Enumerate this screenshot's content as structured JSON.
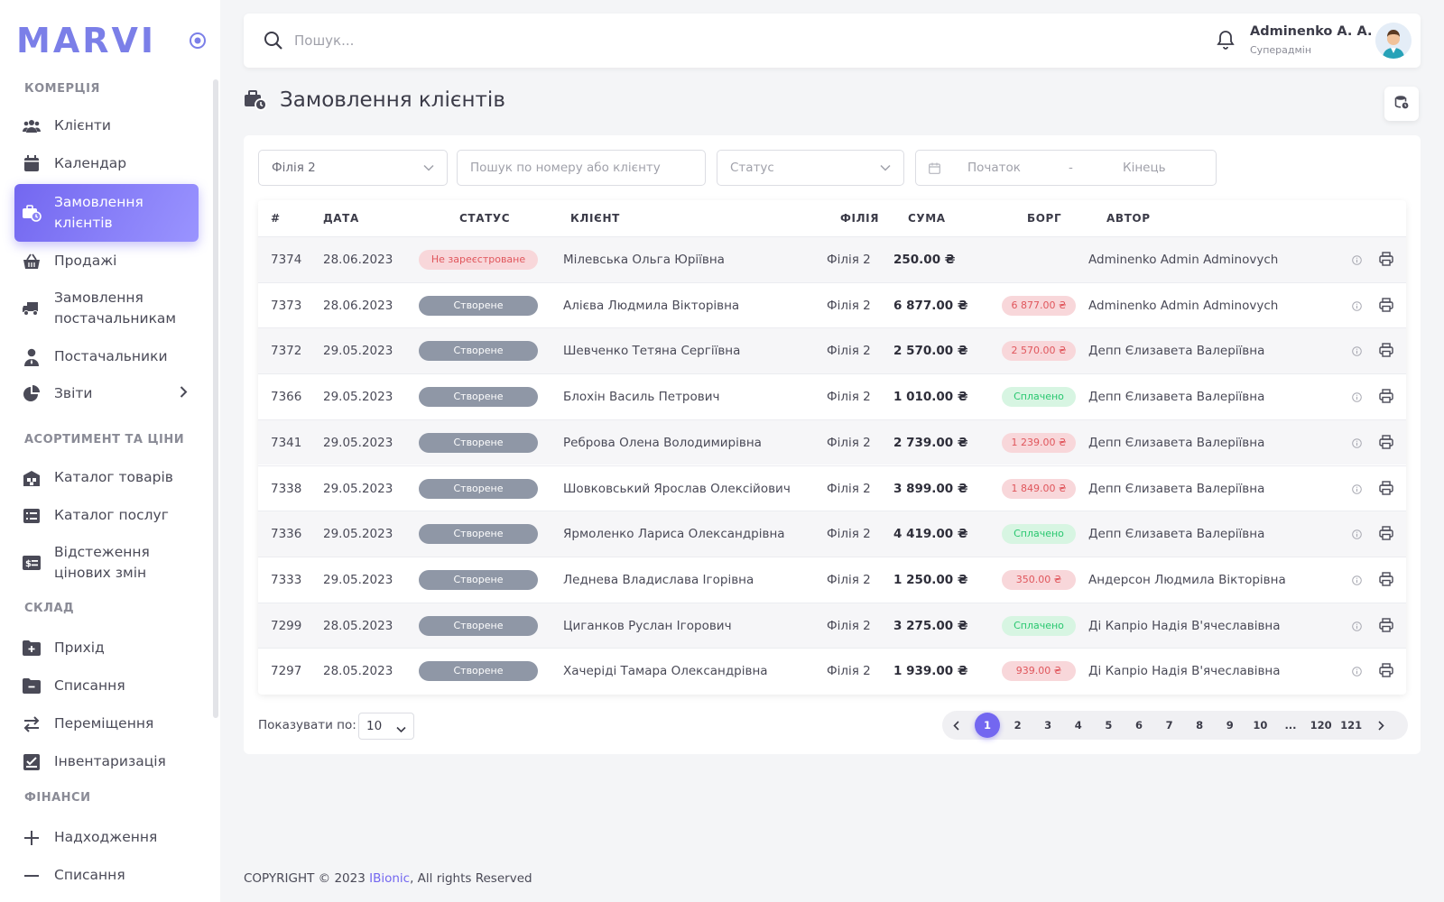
{
  "app": {
    "logo": "MARVI"
  },
  "sidebar": {
    "sections": [
      {
        "title": "КОМЕРЦІЯ"
      },
      {
        "title": "АСОРТИМЕНТ ТА ЦІНИ"
      },
      {
        "title": "СКЛАД"
      },
      {
        "title": "ФІНАНСИ"
      }
    ],
    "items": [
      {
        "label": "Клієнти",
        "icon": "users-icon"
      },
      {
        "label": "Календар",
        "icon": "calendar-icon"
      },
      {
        "label": "Замовлення клієнтів",
        "icon": "briefcase-clock-icon",
        "active": true
      },
      {
        "label": "Продажі",
        "icon": "basket-icon"
      },
      {
        "label": "Замовлення постачальникам",
        "icon": "truck-icon"
      },
      {
        "label": "Постачальники",
        "icon": "user-tie-icon"
      },
      {
        "label": "Звіти",
        "icon": "pie-chart-icon"
      },
      {
        "label": "Каталог товарів",
        "icon": "warehouse-icon"
      },
      {
        "label": "Каталог послуг",
        "icon": "list-icon"
      },
      {
        "label": "Відстеження цінових змін",
        "icon": "price-tag-icon"
      },
      {
        "label": "Прихід",
        "icon": "folder-plus-icon"
      },
      {
        "label": "Списання",
        "icon": "folder-minus-icon"
      },
      {
        "label": "Переміщення",
        "icon": "arrows-swap-icon"
      },
      {
        "label": "Інвентаризація",
        "icon": "checklist-icon"
      },
      {
        "label": "Надходження",
        "icon": "plus-icon"
      },
      {
        "label": "Списання",
        "icon": "minus-icon"
      }
    ]
  },
  "header": {
    "search_placeholder": "Пошук...",
    "user_name": "Adminenko A. A.",
    "user_role": "Суперадмін"
  },
  "page": {
    "title": "Замовлення клієнтів"
  },
  "filters": {
    "branch": "Філія 2",
    "search_placeholder": "Пошук по номеру або клієнту",
    "status_placeholder": "Статус",
    "date_start": "Початок",
    "date_sep": "-",
    "date_end": "Кінець"
  },
  "table": {
    "columns": [
      "#",
      "ДАТА",
      "СТАТУС",
      "КЛІЄНТ",
      "ФІЛІЯ",
      "СУМА",
      "БОРГ",
      "АВТОР"
    ],
    "rows": [
      {
        "id": "7374",
        "date": "28.06.2023",
        "status": "Не зареєстроване",
        "status_type": "unreg",
        "client": "Мілевська Ольга Юріївна",
        "branch": "Філія 2",
        "sum": "250.00 ₴",
        "debt": "",
        "debt_type": "",
        "author": "Adminenko Admin Adminovych"
      },
      {
        "id": "7373",
        "date": "28.06.2023",
        "status": "Створене",
        "status_type": "created",
        "client": "Алієва Людмила Вікторівна",
        "branch": "Філія 2",
        "sum": "6 877.00 ₴",
        "debt": "6 877.00 ₴",
        "debt_type": "red",
        "author": "Adminenko Admin Adminovych"
      },
      {
        "id": "7372",
        "date": "29.05.2023",
        "status": "Створене",
        "status_type": "created",
        "client": "Шевченко Тетяна Сергіївна",
        "branch": "Філія 2",
        "sum": "2 570.00 ₴",
        "debt": "2 570.00 ₴",
        "debt_type": "red",
        "author": "Депп Єлизавета Валеріївна"
      },
      {
        "id": "7366",
        "date": "29.05.2023",
        "status": "Створене",
        "status_type": "created",
        "client": "Блохін Василь Петрович",
        "branch": "Філія 2",
        "sum": "1 010.00 ₴",
        "debt": "Сплачено",
        "debt_type": "green",
        "author": "Депп Єлизавета Валеріївна"
      },
      {
        "id": "7341",
        "date": "29.05.2023",
        "status": "Створене",
        "status_type": "created",
        "client": "Реброва Олена Володимирівна",
        "branch": "Філія 2",
        "sum": "2 739.00 ₴",
        "debt": "1 239.00 ₴",
        "debt_type": "red",
        "author": "Депп Єлизавета Валеріївна"
      },
      {
        "id": "7338",
        "date": "29.05.2023",
        "status": "Створене",
        "status_type": "created",
        "client": "Шовковський Ярослав Олексійович",
        "branch": "Філія 2",
        "sum": "3 899.00 ₴",
        "debt": "1 849.00 ₴",
        "debt_type": "red",
        "author": "Депп Єлизавета Валеріївна"
      },
      {
        "id": "7336",
        "date": "29.05.2023",
        "status": "Створене",
        "status_type": "created",
        "client": "Ярмоленко Лариса Олександрівна",
        "branch": "Філія 2",
        "sum": "4 419.00 ₴",
        "debt": "Сплачено",
        "debt_type": "green",
        "author": "Депп Єлизавета Валеріївна"
      },
      {
        "id": "7333",
        "date": "29.05.2023",
        "status": "Створене",
        "status_type": "created",
        "client": "Леднева Владислава Ігорівна",
        "branch": "Філія 2",
        "sum": "1 250.00 ₴",
        "debt": "350.00 ₴",
        "debt_type": "red",
        "author": "Андерсон Людмила Вікторівна"
      },
      {
        "id": "7299",
        "date": "28.05.2023",
        "status": "Створене",
        "status_type": "created",
        "client": "Циганков Руслан Ігорович",
        "branch": "Філія 2",
        "sum": "3 275.00 ₴",
        "debt": "Сплачено",
        "debt_type": "green",
        "author": "Ді Капріо Надія В'ячеславівна"
      },
      {
        "id": "7297",
        "date": "28.05.2023",
        "status": "Створене",
        "status_type": "created",
        "client": "Хачеріді Тамара Олександрівна",
        "branch": "Філія 2",
        "sum": "1 939.00 ₴",
        "debt": "939.00 ₴",
        "debt_type": "red",
        "author": "Ді Капріо Надія В'ячеславівна"
      }
    ]
  },
  "pagination": {
    "per_page_label": "Показувати по:",
    "per_page_value": "10",
    "pages": [
      "1",
      "2",
      "3",
      "4",
      "5",
      "6",
      "7",
      "8",
      "9",
      "10",
      "...",
      "120",
      "121"
    ],
    "current": "1"
  },
  "footer": {
    "prefix": "COPYRIGHT © 2023 ",
    "brand": "IBionic",
    "suffix": ", All rights Reserved"
  },
  "colors": {
    "accent": "#7367f0",
    "danger": "#e0565c",
    "success": "#28c76f"
  }
}
